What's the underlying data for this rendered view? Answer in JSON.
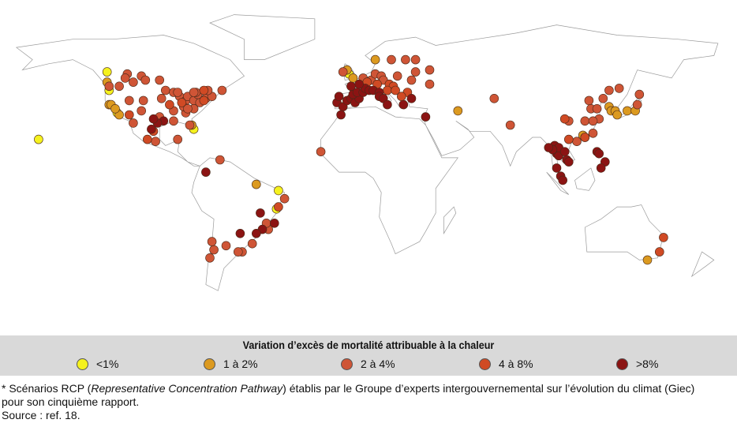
{
  "legend": {
    "title": "Variation d’excès de mortalité attribuable à la chaleur",
    "items": [
      {
        "label": "<1%",
        "color": "#f5f21e"
      },
      {
        "label": "1 à 2%",
        "color": "#dc9a20"
      },
      {
        "label": "2 à 4%",
        "color": "#cf5536"
      },
      {
        "label": "4 à 8%",
        "color": "#d04a24"
      },
      {
        "label": ">8%",
        "color": "#8b1413"
      }
    ]
  },
  "notes": {
    "line1_prefix": "* Scénarios RCP (",
    "line1_italic": "Representative Concentration Pathway",
    "line1_suffix": ") établis par le Groupe d’experts intergouvernemental sur l’évolution du climat (Giec)",
    "line2": "pour son cinquième rapport.",
    "source": "Source : ref. 18."
  },
  "map_data": {
    "projection": "equirectangular",
    "cities": [
      [
        -157,
        21,
        0
      ],
      [
        -122,
        47,
        2
      ],
      [
        -122,
        45,
        0
      ],
      [
        -122,
        38,
        1
      ],
      [
        -121,
        38,
        1
      ],
      [
        -118,
        34,
        0
      ],
      [
        -117,
        33,
        1
      ],
      [
        -119,
        36,
        1
      ],
      [
        -117,
        47,
        2
      ],
      [
        -112,
        40,
        2
      ],
      [
        -112,
        33,
        3
      ],
      [
        -106,
        35,
        2
      ],
      [
        -105,
        40,
        2
      ],
      [
        -97,
        32,
        2
      ],
      [
        -95,
        30,
        4
      ],
      [
        -98,
        29,
        4
      ],
      [
        -90,
        30,
        2
      ],
      [
        -90,
        35,
        2
      ],
      [
        -87,
        42,
        2
      ],
      [
        -84,
        40,
        2
      ],
      [
        -83,
        42,
        2
      ],
      [
        -80,
        40,
        2
      ],
      [
        -77,
        39,
        2
      ],
      [
        -74,
        41,
        2
      ],
      [
        -71,
        42,
        2
      ],
      [
        -75,
        40,
        3
      ],
      [
        -84,
        34,
        2
      ],
      [
        -81,
        28,
        1
      ],
      [
        -80,
        26,
        0
      ],
      [
        -82,
        28,
        2
      ],
      [
        -96,
        41,
        2
      ],
      [
        -94,
        45,
        2
      ],
      [
        -90,
        44,
        2
      ],
      [
        -86,
        39,
        3
      ],
      [
        -78,
        43,
        2
      ],
      [
        -73,
        45,
        2
      ],
      [
        -79,
        44,
        2
      ],
      [
        -66,
        45,
        2
      ],
      [
        -75,
        45,
        3
      ],
      [
        -113,
        53,
        2
      ],
      [
        -114,
        51,
        2
      ],
      [
        -97,
        50,
        2
      ],
      [
        -106,
        52,
        2
      ],
      [
        -123,
        49,
        1
      ],
      [
        -123,
        54,
        0
      ],
      [
        -110,
        49,
        2
      ],
      [
        -104,
        50,
        2
      ],
      [
        -80,
        36,
        2
      ],
      [
        -85,
        37,
        2
      ],
      [
        -92,
        38,
        3
      ],
      [
        -100,
        31,
        4
      ],
      [
        -101,
        26,
        4
      ],
      [
        -99,
        20,
        2
      ],
      [
        -103,
        21,
        3
      ],
      [
        -110,
        29,
        2
      ],
      [
        -100,
        25,
        3
      ],
      [
        -88,
        21,
        2
      ],
      [
        -80,
        44,
        2
      ],
      [
        -88,
        44,
        2
      ],
      [
        -83,
        36,
        2
      ],
      [
        -67,
        11,
        2
      ],
      [
        -74,
        5,
        4
      ],
      [
        -47,
        -15,
        4
      ],
      [
        -39,
        -13,
        0
      ],
      [
        -38,
        -4,
        0
      ],
      [
        -35,
        -8,
        2
      ],
      [
        -43,
        -23,
        2
      ],
      [
        -46,
        -23,
        4
      ],
      [
        -51,
        -30,
        2
      ],
      [
        -56,
        -34,
        2
      ],
      [
        -58,
        -34,
        2
      ],
      [
        -64,
        -31,
        2
      ],
      [
        -70,
        -33,
        2
      ],
      [
        -72,
        -37,
        2
      ],
      [
        -71,
        -29,
        2
      ],
      [
        -49,
        -25,
        4
      ],
      [
        -44,
        -20,
        2
      ],
      [
        -40,
        -20,
        4
      ],
      [
        -57,
        -25,
        4
      ],
      [
        -38,
        -12,
        3
      ],
      [
        -49,
        -1,
        1
      ],
      [
        -9,
        39,
        4
      ],
      [
        -8,
        42,
        4
      ],
      [
        -6,
        37,
        4
      ],
      [
        -4,
        40,
        4
      ],
      [
        -2,
        41,
        4
      ],
      [
        0,
        39,
        4
      ],
      [
        2,
        41,
        4
      ],
      [
        -1,
        43,
        4
      ],
      [
        1,
        44,
        4
      ],
      [
        4,
        44,
        4
      ],
      [
        5,
        46,
        4
      ],
      [
        2,
        48,
        4
      ],
      [
        -2,
        47,
        4
      ],
      [
        7,
        45,
        4
      ],
      [
        9,
        45,
        4
      ],
      [
        12,
        44,
        4
      ],
      [
        12,
        42,
        4
      ],
      [
        14,
        41,
        4
      ],
      [
        16,
        38,
        4
      ],
      [
        6,
        49,
        3
      ],
      [
        4,
        51,
        2
      ],
      [
        -1,
        51,
        1
      ],
      [
        -3,
        53,
        0
      ],
      [
        -4,
        55,
        1
      ],
      [
        -6,
        54,
        2
      ],
      [
        8,
        50,
        2
      ],
      [
        10,
        53,
        2
      ],
      [
        13,
        52,
        2
      ],
      [
        17,
        48,
        3
      ],
      [
        19,
        47,
        3
      ],
      [
        21,
        52,
        2
      ],
      [
        26,
        44,
        3
      ],
      [
        24,
        38,
        4
      ],
      [
        23,
        42,
        3
      ],
      [
        28,
        41,
        4
      ],
      [
        18,
        60,
        2
      ],
      [
        25,
        60,
        2
      ],
      [
        30,
        60,
        2
      ],
      [
        10,
        60,
        1
      ],
      [
        28,
        50,
        2
      ],
      [
        30,
        54,
        2
      ],
      [
        37,
        55,
        2
      ],
      [
        37,
        48,
        2
      ],
      [
        14,
        50,
        2
      ],
      [
        16,
        45,
        3
      ],
      [
        20,
        45,
        3
      ],
      [
        11,
        48,
        3
      ],
      [
        -17,
        15,
        2
      ],
      [
        -7,
        33,
        4
      ],
      [
        35,
        32,
        4
      ],
      [
        51,
        35,
        1
      ],
      [
        69,
        41,
        2
      ],
      [
        77,
        28,
        2
      ],
      [
        116,
        40,
        2
      ],
      [
        121,
        31,
        2
      ],
      [
        114,
        30,
        2
      ],
      [
        106,
        30,
        2
      ],
      [
        113,
        23,
        1
      ],
      [
        114,
        22,
        1
      ],
      [
        104,
        31,
        3
      ],
      [
        117,
        36,
        2
      ],
      [
        123,
        41,
        2
      ],
      [
        126,
        37,
        1
      ],
      [
        127,
        35,
        1
      ],
      [
        129,
        35,
        1
      ],
      [
        135,
        35,
        1
      ],
      [
        139,
        35,
        1
      ],
      [
        140,
        38,
        2
      ],
      [
        141,
        43,
        2
      ],
      [
        130,
        33,
        1
      ],
      [
        131,
        46,
        2
      ],
      [
        126,
        45,
        2
      ],
      [
        118,
        24,
        2
      ],
      [
        110,
        20,
        2
      ],
      [
        106,
        21,
        3
      ],
      [
        105,
        11,
        4
      ],
      [
        106,
        10,
        4
      ],
      [
        100,
        14,
        4
      ],
      [
        101,
        13,
        4
      ],
      [
        99,
        18,
        4
      ],
      [
        100,
        7,
        4
      ],
      [
        102,
        3,
        4
      ],
      [
        101,
        17,
        4
      ],
      [
        104,
        15,
        4
      ],
      [
        98,
        16,
        4
      ],
      [
        103,
        1,
        4
      ],
      [
        96,
        17,
        4
      ],
      [
        120,
        15,
        4
      ],
      [
        121,
        14,
        4
      ],
      [
        124,
        10,
        4
      ],
      [
        122,
        7,
        4
      ],
      [
        114,
        22,
        3
      ],
      [
        118,
        30,
        2
      ],
      [
        120,
        36,
        2
      ],
      [
        151,
        -34,
        3
      ],
      [
        153,
        -27,
        3
      ],
      [
        145,
        -38,
        1
      ]
    ]
  }
}
